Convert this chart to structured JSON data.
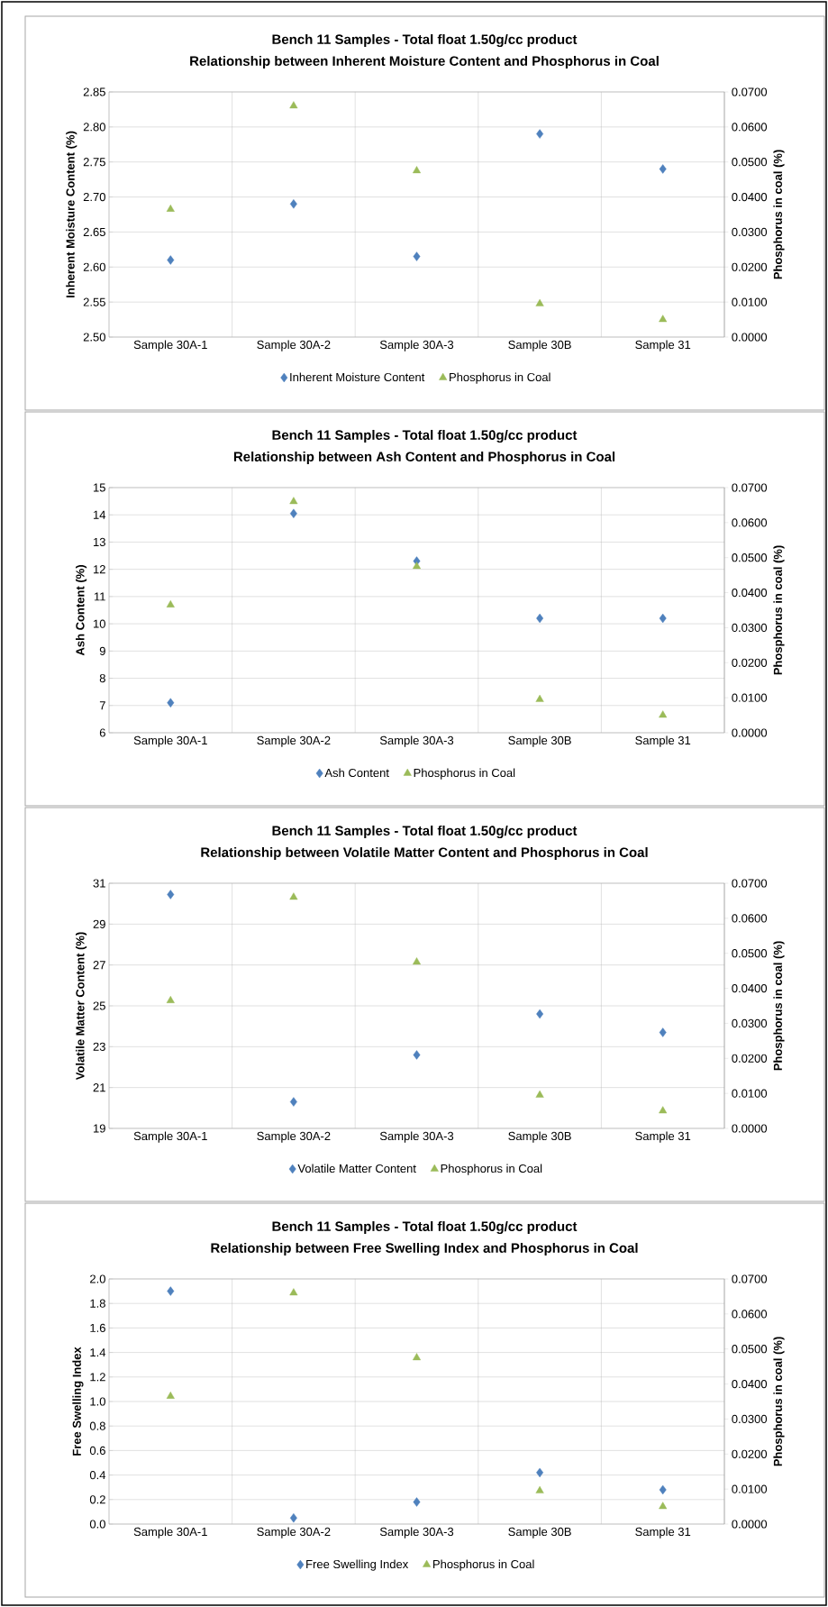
{
  "chart_data": [
    {
      "type": "scatter",
      "title": "Bench 11 Samples - Total float 1.50g/cc product",
      "subtitle": "Relationship between Inherent Moisture Content and Phosphorus in Coal",
      "categories": [
        "Sample 30A-1",
        "Sample 30A-2",
        "Sample 30A-3",
        "Sample 30B",
        "Sample 31"
      ],
      "ylabel": "Inherent Moisture Content (%)",
      "y2label": "Phosphorus in coal (%)",
      "ylim": [
        2.5,
        2.85
      ],
      "yticks": [
        {
          "value": 2.5,
          "label": "2.50"
        },
        {
          "value": 2.55,
          "label": "2.55"
        },
        {
          "value": 2.6,
          "label": "2.60"
        },
        {
          "value": 2.65,
          "label": "2.65"
        },
        {
          "value": 2.7,
          "label": "2.70"
        },
        {
          "value": 2.75,
          "label": "2.75"
        },
        {
          "value": 2.8,
          "label": "2.80"
        },
        {
          "value": 2.85,
          "label": "2.85"
        }
      ],
      "y2lim": [
        0,
        0.07
      ],
      "y2ticks": [
        {
          "value": 0,
          "label": "0.0000"
        },
        {
          "value": 0.01,
          "label": "0.0100"
        },
        {
          "value": 0.02,
          "label": "0.0200"
        },
        {
          "value": 0.03,
          "label": "0.0300"
        },
        {
          "value": 0.04,
          "label": "0.0400"
        },
        {
          "value": 0.05,
          "label": "0.0500"
        },
        {
          "value": 0.06,
          "label": "0.0600"
        },
        {
          "value": 0.07,
          "label": "0.0700"
        }
      ],
      "grid": true,
      "legend": "bottom",
      "series": [
        {
          "name": "Inherent Moisture Content",
          "color": "#4f81bd",
          "marker": "diamond",
          "values": [
            2.61,
            2.69,
            2.615,
            2.79,
            2.74
          ]
        },
        {
          "name": "Phosphorus in Coal",
          "color": "#9bbb59",
          "marker": "triangle",
          "axis": "y2",
          "values": [
            0.0365,
            0.066,
            0.0475,
            0.0095,
            0.005
          ]
        }
      ]
    },
    {
      "type": "scatter",
      "title": "Bench 11 Samples - Total float 1.50g/cc product",
      "subtitle": "Relationship between Ash Content and Phosphorus in Coal",
      "categories": [
        "Sample 30A-1",
        "Sample 30A-2",
        "Sample 30A-3",
        "Sample 30B",
        "Sample 31"
      ],
      "ylabel": "Ash Content (%)",
      "y2label": "Phosphorus in coal (%)",
      "ylim": [
        6,
        15
      ],
      "yticks": [
        6,
        7,
        8,
        9,
        10,
        11,
        12,
        13,
        14,
        15
      ],
      "y2lim": [
        0,
        0.07
      ],
      "y2ticks": [
        {
          "value": 0,
          "label": "0.0000"
        },
        {
          "value": 0.01,
          "label": "0.0100"
        },
        {
          "value": 0.02,
          "label": "0.0200"
        },
        {
          "value": 0.03,
          "label": "0.0300"
        },
        {
          "value": 0.04,
          "label": "0.0400"
        },
        {
          "value": 0.05,
          "label": "0.0500"
        },
        {
          "value": 0.06,
          "label": "0.0600"
        },
        {
          "value": 0.07,
          "label": "0.0700"
        }
      ],
      "grid": true,
      "legend": "bottom",
      "series": [
        {
          "name": "Ash Content",
          "color": "#4f81bd",
          "marker": "diamond",
          "values": [
            7.1,
            14.05,
            12.3,
            10.2,
            10.2
          ]
        },
        {
          "name": "Phosphorus in Coal",
          "color": "#9bbb59",
          "marker": "triangle",
          "axis": "y2",
          "values": [
            0.0365,
            0.066,
            0.0475,
            0.0095,
            0.005
          ]
        }
      ]
    },
    {
      "type": "scatter",
      "title": "Bench 11 Samples - Total float 1.50g/cc product",
      "subtitle": "Relationship between Volatile Matter Content and Phosphorus in Coal",
      "categories": [
        "Sample 30A-1",
        "Sample 30A-2",
        "Sample 30A-3",
        "Sample 30B",
        "Sample 31"
      ],
      "ylabel": "Volatile Matter Content (%)",
      "y2label": "Phosphorus in coal (%)",
      "ylim": [
        19,
        31
      ],
      "yticks": [
        19,
        21,
        23,
        25,
        27,
        29,
        31
      ],
      "y2lim": [
        0,
        0.07
      ],
      "y2ticks": [
        {
          "value": 0,
          "label": "0.0000"
        },
        {
          "value": 0.01,
          "label": "0.0100"
        },
        {
          "value": 0.02,
          "label": "0.0200"
        },
        {
          "value": 0.03,
          "label": "0.0300"
        },
        {
          "value": 0.04,
          "label": "0.0400"
        },
        {
          "value": 0.05,
          "label": "0.0500"
        },
        {
          "value": 0.06,
          "label": "0.0600"
        },
        {
          "value": 0.07,
          "label": "0.0700"
        }
      ],
      "grid": true,
      "legend": "bottom",
      "series": [
        {
          "name": "Volatile Matter Content",
          "color": "#4f81bd",
          "marker": "diamond",
          "values": [
            30.45,
            20.3,
            22.6,
            24.6,
            23.7
          ]
        },
        {
          "name": "Phosphorus in Coal",
          "color": "#9bbb59",
          "marker": "triangle",
          "axis": "y2",
          "values": [
            0.0365,
            0.066,
            0.0475,
            0.0095,
            0.005
          ]
        }
      ]
    },
    {
      "type": "scatter",
      "title": "Bench 11 Samples - Total float 1.50g/cc product",
      "subtitle": "Relationship between Free Swelling Index and Phosphorus in Coal",
      "categories": [
        "Sample 30A-1",
        "Sample 30A-2",
        "Sample 30A-3",
        "Sample 30B",
        "Sample 31"
      ],
      "ylabel": "Free Swelling Index",
      "y2label": "Phosphorus in coal (%)",
      "ylim": [
        0,
        2
      ],
      "yticks": [
        {
          "value": 0,
          "label": "0.0"
        },
        {
          "value": 0.2,
          "label": "0.2"
        },
        {
          "value": 0.4,
          "label": "0.4"
        },
        {
          "value": 0.6,
          "label": "0.6"
        },
        {
          "value": 0.8,
          "label": "0.8"
        },
        {
          "value": 1,
          "label": "1.0"
        },
        {
          "value": 1.2,
          "label": "1.2"
        },
        {
          "value": 1.4,
          "label": "1.4"
        },
        {
          "value": 1.6,
          "label": "1.6"
        },
        {
          "value": 1.8,
          "label": "1.8"
        },
        {
          "value": 2,
          "label": "2.0"
        }
      ],
      "y2lim": [
        0,
        0.07
      ],
      "y2ticks": [
        {
          "value": 0,
          "label": "0.0000"
        },
        {
          "value": 0.01,
          "label": "0.0100"
        },
        {
          "value": 0.02,
          "label": "0.0200"
        },
        {
          "value": 0.03,
          "label": "0.0300"
        },
        {
          "value": 0.04,
          "label": "0.0400"
        },
        {
          "value": 0.05,
          "label": "0.0500"
        },
        {
          "value": 0.06,
          "label": "0.0600"
        },
        {
          "value": 0.07,
          "label": "0.0700"
        }
      ],
      "grid": true,
      "legend": "bottom",
      "series": [
        {
          "name": "Free Swelling Index",
          "color": "#4f81bd",
          "marker": "diamond",
          "values": [
            1.9,
            0.05,
            0.18,
            0.42,
            0.28
          ]
        },
        {
          "name": "Phosphorus in Coal",
          "color": "#9bbb59",
          "marker": "triangle",
          "axis": "y2",
          "values": [
            0.0365,
            0.066,
            0.0475,
            0.0095,
            0.005
          ]
        }
      ]
    }
  ]
}
